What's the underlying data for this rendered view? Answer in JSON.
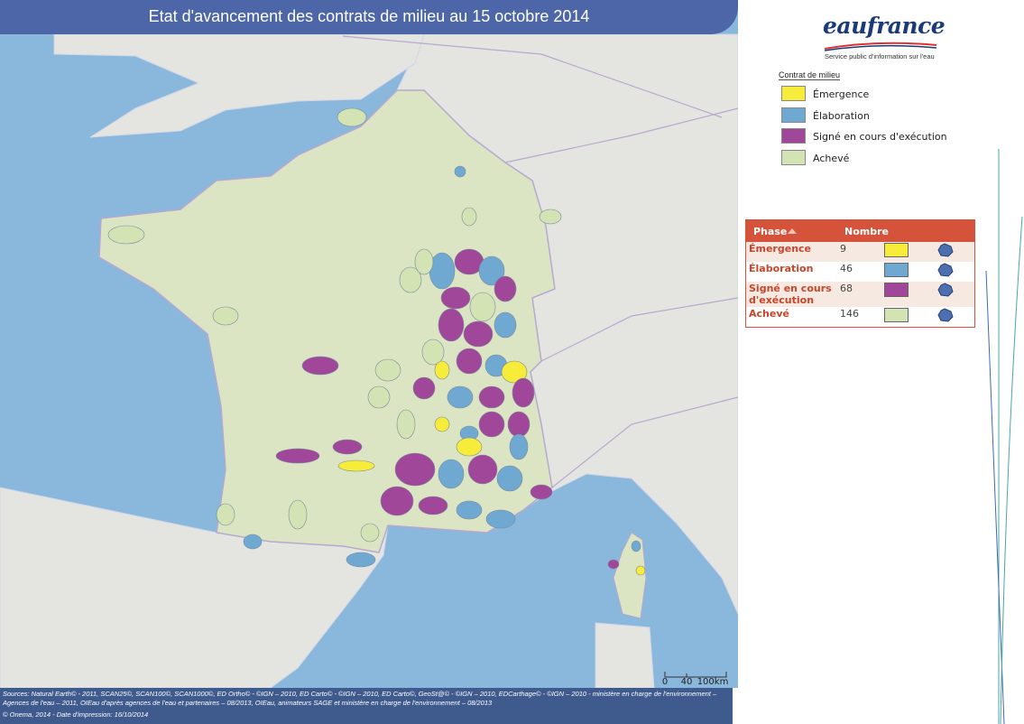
{
  "header": {
    "title": "Etat d'avancement des contrats de milieu au 15 octobre 2014"
  },
  "logo": {
    "name": "eaufrance",
    "tagline": "Service public d'information sur l'eau"
  },
  "legend": {
    "title": "Contrat de milieu",
    "items": [
      {
        "label": "Émergence",
        "color": "#f7ec3a"
      },
      {
        "label": "Élaboration",
        "color": "#6fa8d0"
      },
      {
        "label": "Signé en cours d'exécution",
        "color": "#a0479a"
      },
      {
        "label": "Achevé",
        "color": "#d3e3b4"
      }
    ]
  },
  "table": {
    "columns": [
      "Phase",
      "Nombre"
    ],
    "rows": [
      [
        "Émergence",
        "9"
      ],
      [
        "Élaboration",
        "46"
      ],
      [
        "Signé en cours d'exécution",
        "68"
      ],
      [
        "Achevé",
        "146"
      ]
    ]
  },
  "scale": {
    "labels": [
      "0",
      "40",
      "100km"
    ]
  },
  "footer": {
    "sources": "Sources: Natural Earth© - 2011, SCAN25©, SCAN100©, SCAN1000©, ED Ortho© - ©IGN – 2010, ED Carto© - ©IGN – 2010, ED Carto©, GeoSt@© - ©IGN – 2010, EDCarthage© - ©IGN – 2010 - ministère en charge de l'environnement – Agences de l'eau – 2011, OIEau d'après agences de l'eau et partenaires – 08/2013, OIEau, animateurs SAGE et ministère en charge de l'environnement – 08/2013",
    "credit": "© Onema, 2014 - Date d'impression: 16/10/2014"
  }
}
